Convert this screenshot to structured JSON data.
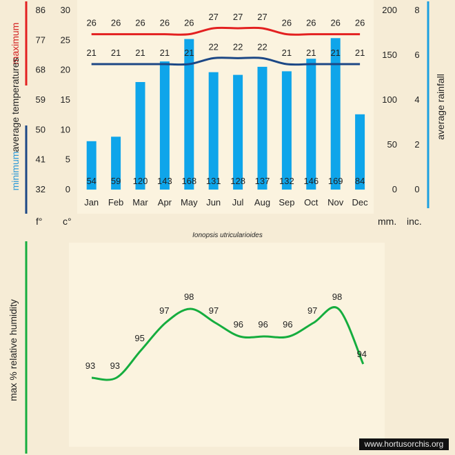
{
  "subtitle": "Ionopsis utricularioides",
  "credit": "www.hortusorchis.org",
  "axis_labels": {
    "max_word": "maximum",
    "avg_temp": "average  temperatures",
    "min_word": "minimum",
    "avg_rain": "average  rainfall",
    "humidity": "max %  relative humidity"
  },
  "units": {
    "f": "f°",
    "c": "c°",
    "mm": "mm.",
    "inc": "inc."
  },
  "colors": {
    "background": "#f6ecd6",
    "panel": "#fbf3df",
    "bars": "#0fa5ea",
    "max_line": "#e32020",
    "min_line": "#1c4785",
    "humidity_line": "#15ad3e",
    "blue_rule": "#1b9fe0"
  },
  "chart_data": [
    {
      "type": "bar",
      "categories": [
        "Jan",
        "Feb",
        "Mar",
        "Apr",
        "May",
        "Jun",
        "Jul",
        "Aug",
        "Sep",
        "Oct",
        "Nov",
        "Dec"
      ],
      "series": [
        {
          "values": [
            54,
            59,
            120,
            143,
            168,
            131,
            128,
            137,
            132,
            146,
            169,
            84
          ]
        },
        {
          "name": "maximum",
          "type": "line",
          "values": [
            26,
            26,
            26,
            26,
            26,
            27,
            27,
            27,
            26,
            26,
            26,
            26
          ]
        },
        {
          "name": "minimum",
          "type": "line",
          "values": [
            21,
            21,
            21,
            21,
            21,
            22,
            22,
            22,
            21,
            21,
            21,
            21
          ]
        }
      ],
      "ylabel": "average  temperatures",
      "y2label": "average  rainfall",
      "yticks_c": [
        "0",
        "5",
        "10",
        "15",
        "20",
        "25",
        "30"
      ],
      "yticks_f": [
        "32",
        "41",
        "50",
        "59",
        "68",
        "77",
        "86"
      ],
      "yticks_mm": [
        "0",
        "50",
        "100",
        "150",
        "200"
      ],
      "yticks_inc": [
        "0",
        "2",
        "4",
        "6",
        "8"
      ],
      "ylim_c": [
        0,
        30
      ],
      "ylim_mm": [
        0,
        200
      ]
    },
    {
      "type": "line",
      "categories": [
        "Jan",
        "Feb",
        "Mar",
        "Apr",
        "May",
        "Jun",
        "Jul",
        "Aug",
        "Sep",
        "Oct",
        "Nov",
        "Dec"
      ],
      "values": [
        93,
        93,
        95,
        97,
        98,
        97,
        96,
        96,
        96,
        97,
        98,
        94
      ],
      "ylabel": "max %  relative humidity"
    }
  ]
}
